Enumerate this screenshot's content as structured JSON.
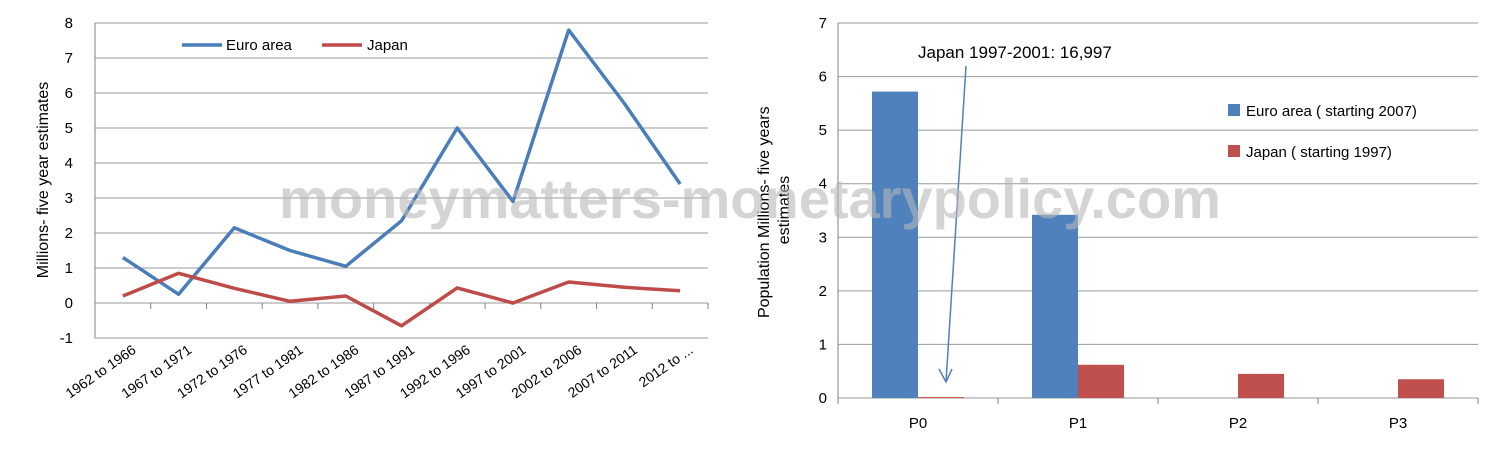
{
  "chart_data": [
    {
      "type": "line",
      "categories": [
        "1962 to 1966",
        "1967 to 1971",
        "1972 to 1976",
        "1977 to 1981",
        "1982 to 1986",
        "1987 to 1991",
        "1992 to 1996",
        "1997 to 2001",
        "2002 to 2006",
        "2007 to 2011",
        "2012 to ..."
      ],
      "series": [
        {
          "name": "Euro area",
          "color": "#4a7ebb",
          "values": [
            1.3,
            0.25,
            2.15,
            1.5,
            1.05,
            2.35,
            5.0,
            2.9,
            7.8,
            5.7,
            3.4
          ]
        },
        {
          "name": "Japan",
          "color": "#be4b48",
          "values": [
            0.2,
            0.85,
            0.42,
            0.05,
            0.2,
            -0.65,
            0.43,
            0.0,
            0.6,
            0.45,
            0.35
          ]
        }
      ],
      "ylabel": "Millions- five year estimates",
      "ylim": [
        -1,
        8
      ],
      "yticks": [
        "-1",
        "0",
        "1",
        "2",
        "3",
        "4",
        "5",
        "6",
        "7",
        "8"
      ],
      "grid": true,
      "legend": "top"
    },
    {
      "type": "bar",
      "categories": [
        "P0",
        "P1",
        "P2",
        "P3"
      ],
      "series": [
        {
          "name": "Euro area ( starting 2007)",
          "color": "#4f81bd",
          "values": [
            5.72,
            3.42,
            null,
            null
          ]
        },
        {
          "name": "Japan ( starting 1997)",
          "color": "#c0504d",
          "values": [
            0.017,
            0.62,
            0.45,
            0.35
          ]
        }
      ],
      "ylabel": "Population Millions- five years estimates",
      "ylim": [
        0,
        7
      ],
      "yticks": [
        "0",
        "1",
        "2",
        "3",
        "4",
        "5",
        "6",
        "7"
      ],
      "grid": true,
      "legend": "right",
      "annotation": "Japan 1997-2001: 16,997"
    }
  ],
  "watermark": "moneymatters-monetarypolicy.com"
}
